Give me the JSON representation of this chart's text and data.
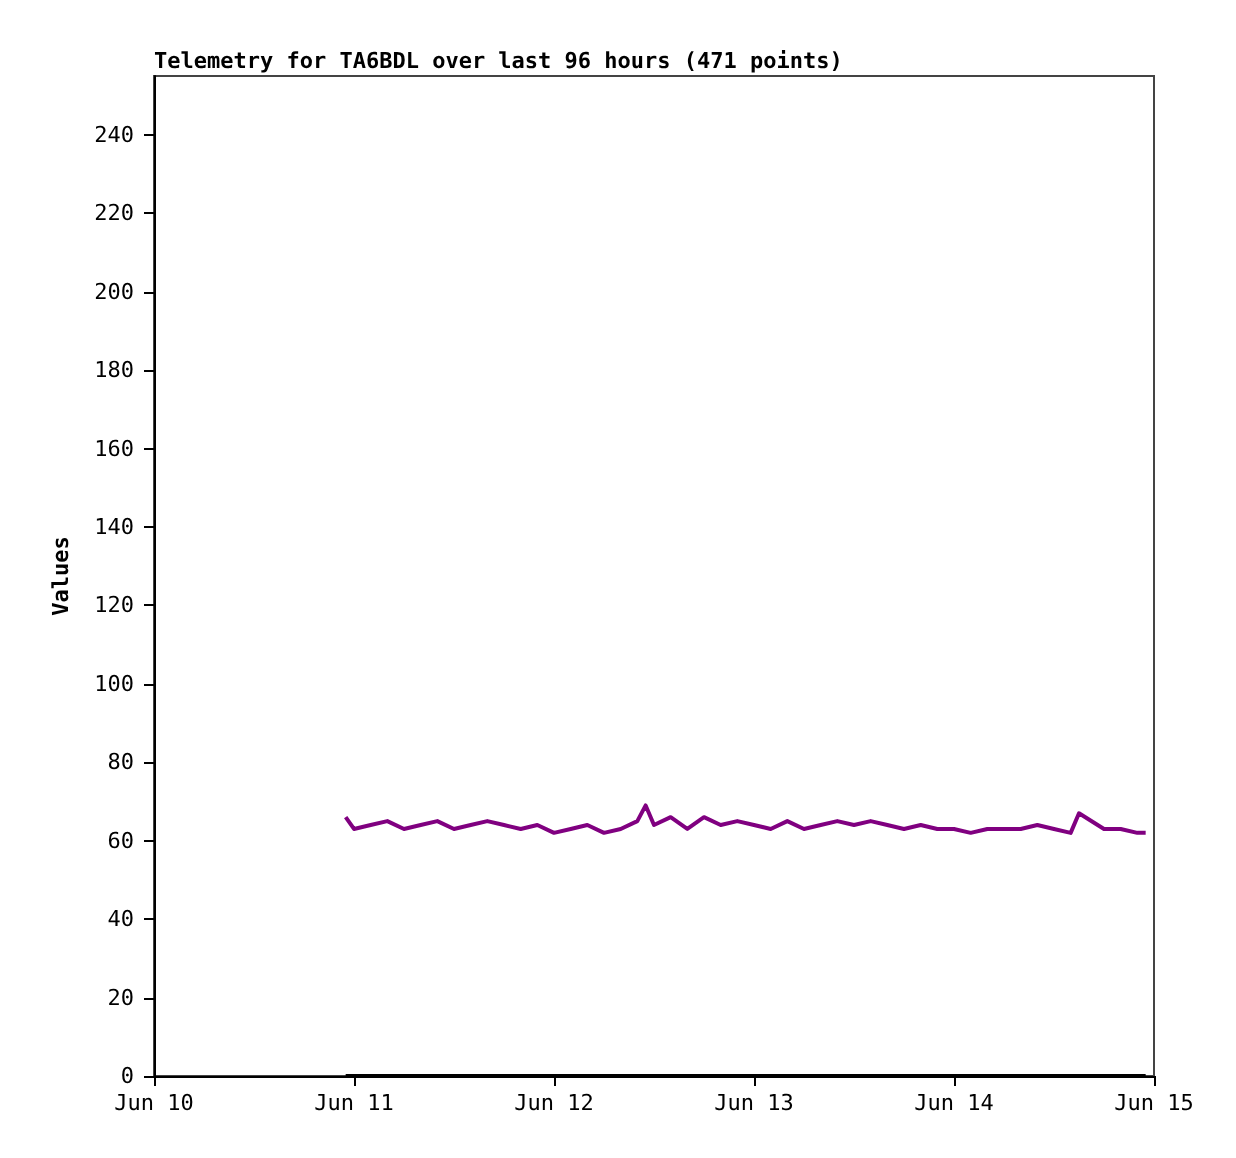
{
  "chart_data": {
    "type": "line",
    "title": "Telemetry for TA6BDL over last 96 hours (471 points)",
    "ylabel": "Values",
    "xlim": [
      "--06-10",
      "--06-15"
    ],
    "xticks": [
      {
        "value": "--06-10",
        "label": "Jun 10"
      },
      {
        "value": "--06-11",
        "label": "Jun 11"
      },
      {
        "value": "--06-12",
        "label": "Jun 12"
      },
      {
        "value": "--06-13",
        "label": "Jun 13"
      },
      {
        "value": "--06-14",
        "label": "Jun 14"
      },
      {
        "value": "--06-15",
        "label": "Jun 15"
      }
    ],
    "ylim": [
      0,
      255
    ],
    "yticks": [
      0,
      20,
      40,
      60,
      80,
      100,
      120,
      140,
      160,
      180,
      200,
      220,
      240
    ],
    "grid": false,
    "marker": "none",
    "line_style": "solid",
    "series": [
      {
        "color": "#800080",
        "x": [
          "--06-10T23:00",
          "--06-11T00:00",
          "--06-11T02:00",
          "--06-11T04:00",
          "--06-11T06:00",
          "--06-11T08:00",
          "--06-11T10:00",
          "--06-11T12:00",
          "--06-11T14:00",
          "--06-11T16:00",
          "--06-11T18:00",
          "--06-11T20:00",
          "--06-11T22:00",
          "--06-12T00:00",
          "--06-12T02:00",
          "--06-12T04:00",
          "--06-12T06:00",
          "--06-12T08:00",
          "--06-12T10:00",
          "--06-12T11:00",
          "--06-12T12:00",
          "--06-12T14:00",
          "--06-12T16:00",
          "--06-12T18:00",
          "--06-12T20:00",
          "--06-12T22:00",
          "--06-13T00:00",
          "--06-13T02:00",
          "--06-13T04:00",
          "--06-13T06:00",
          "--06-13T08:00",
          "--06-13T10:00",
          "--06-13T12:00",
          "--06-13T14:00",
          "--06-13T16:00",
          "--06-13T18:00",
          "--06-13T20:00",
          "--06-13T22:00",
          "--06-14T00:00",
          "--06-14T02:00",
          "--06-14T04:00",
          "--06-14T06:00",
          "--06-14T08:00",
          "--06-14T10:00",
          "--06-14T12:00",
          "--06-14T14:00",
          "--06-14T15:00",
          "--06-14T18:00",
          "--06-14T20:00",
          "--06-14T22:00",
          "--06-14T23:00"
        ],
        "values": [
          66,
          63,
          64,
          65,
          63,
          64,
          65,
          63,
          64,
          65,
          64,
          63,
          64,
          62,
          63,
          64,
          62,
          63,
          65,
          69,
          64,
          66,
          63,
          66,
          64,
          65,
          64,
          63,
          65,
          63,
          64,
          65,
          64,
          65,
          64,
          63,
          64,
          63,
          63,
          62,
          63,
          63,
          63,
          64,
          63,
          62,
          67,
          63,
          63,
          62,
          62
        ]
      },
      {
        "color": "#000000",
        "x": [
          "--06-10T23:00",
          "--06-14T23:00"
        ],
        "values": [
          0,
          0
        ]
      }
    ]
  }
}
